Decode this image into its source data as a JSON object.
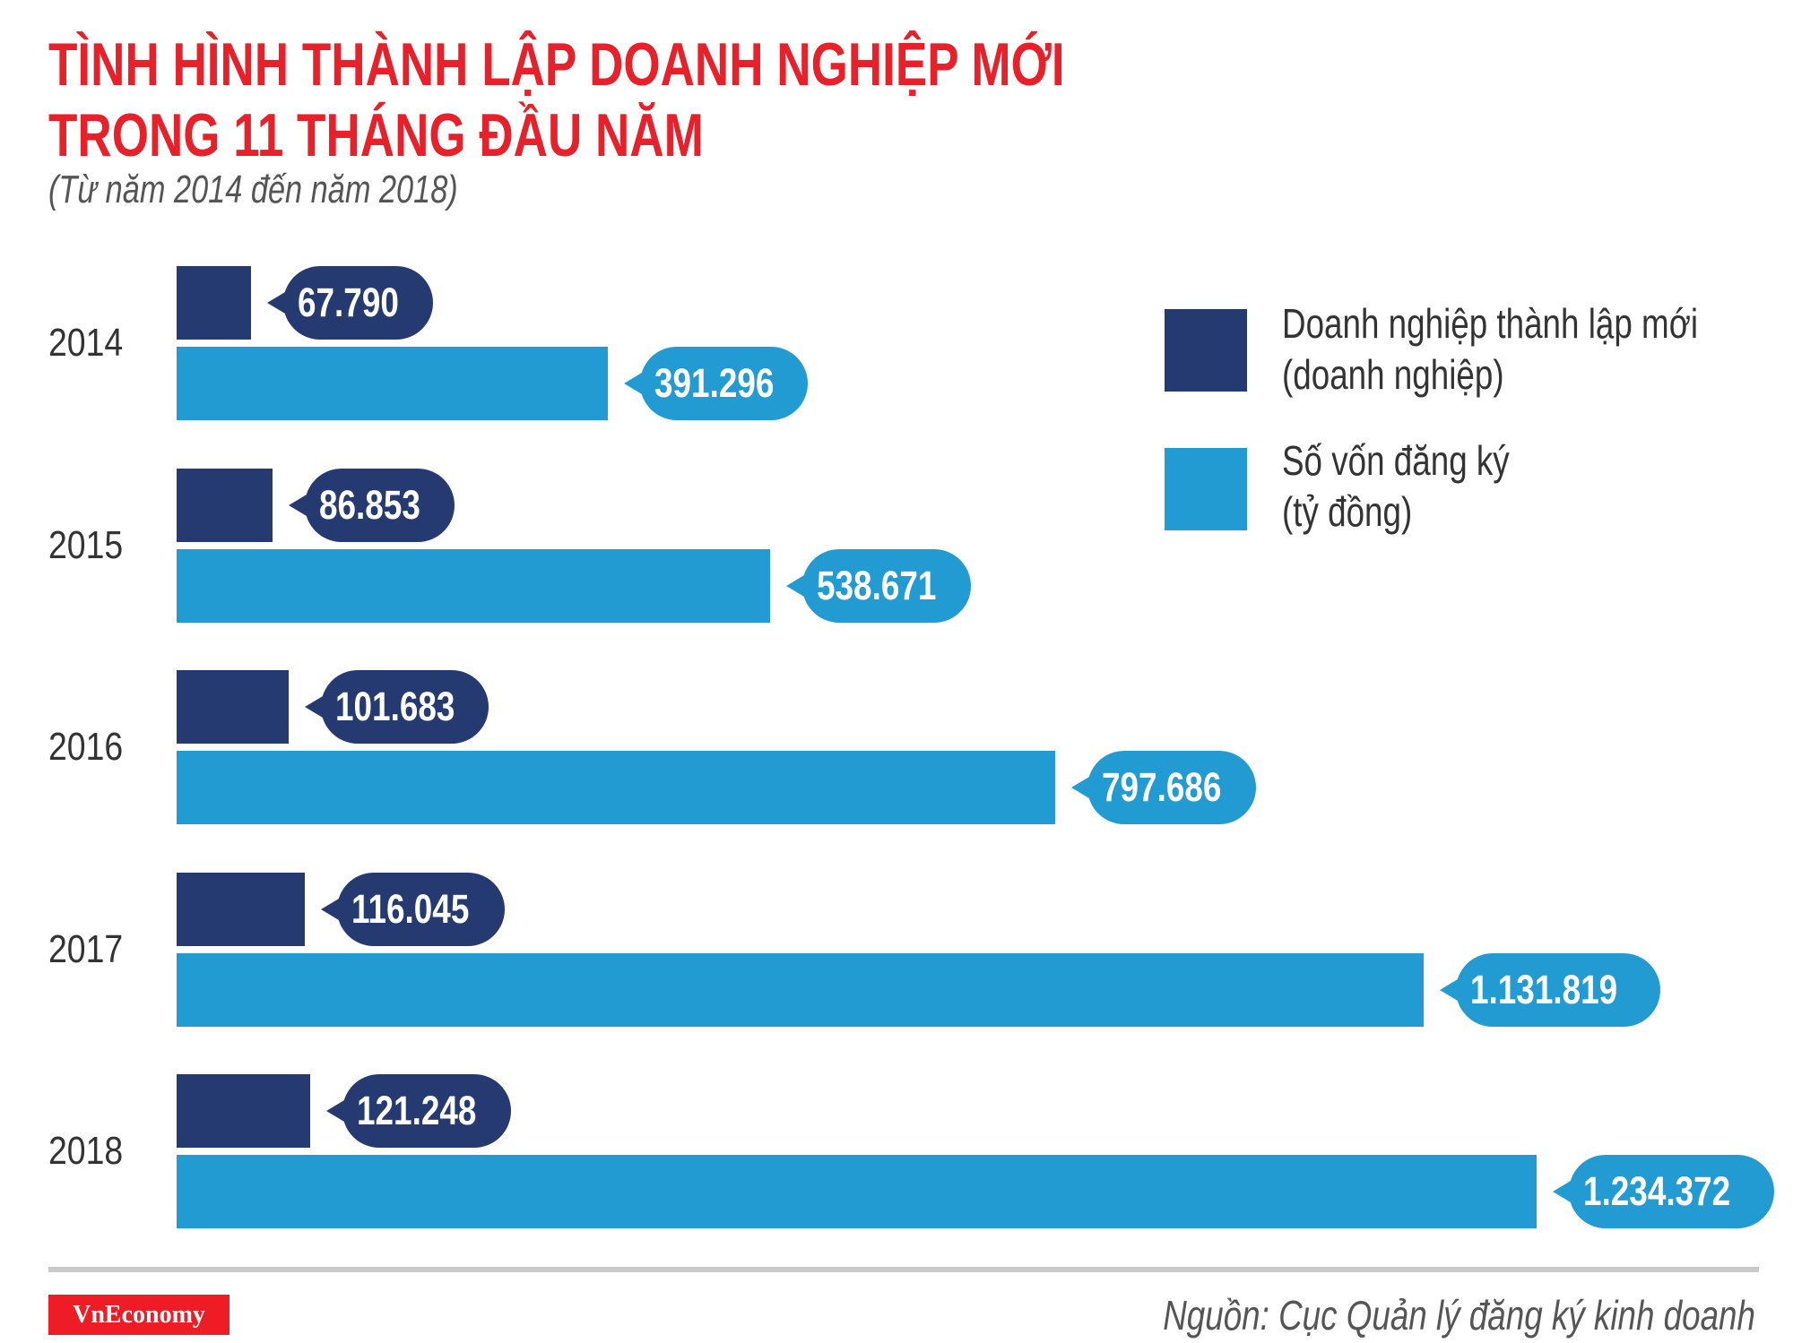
{
  "chart_data": {
    "type": "bar",
    "orientation": "horizontal",
    "title": "TÌNH HÌNH THÀNH LẬP DOANH NGHIỆP MỚI TRONG 11 THÁNG ĐẦU NĂM",
    "title_lines": [
      "TÌNH HÌNH THÀNH LẬP DOANH NGHIỆP MỚI",
      "TRONG 11 THÁNG ĐẦU NĂM"
    ],
    "subtitle": "(Từ năm 2014 đến năm 2018)",
    "categories": [
      "2014",
      "2015",
      "2016",
      "2017",
      "2018"
    ],
    "series": [
      {
        "name": "Doanh nghiệp thành lập mới (doanh nghiệp)",
        "legend_lines": [
          "Doanh nghiệp thành lập mới",
          "(doanh nghiệp)"
        ],
        "color": "#263a72",
        "values": [
          67790,
          86853,
          101683,
          116045,
          121248
        ],
        "labels": [
          "67.790",
          "86.853",
          "101.683",
          "116.045",
          "121.248"
        ]
      },
      {
        "name": "Số vốn đăng ký (tỷ đồng)",
        "legend_lines": [
          "Số vốn đăng ký",
          "(tỷ đồng)"
        ],
        "color": "#219bd2",
        "values": [
          391296,
          538671,
          797686,
          1131819,
          1234372
        ],
        "labels": [
          "391.296",
          "538.671",
          "797.686",
          "1.131.819",
          "1.234.372"
        ]
      }
    ],
    "legend_position": "top-right",
    "grid": false
  },
  "footer": {
    "logo": "VnEconomy",
    "source": "Nguồn: Cục Quản lý đăng ký kinh doanh"
  },
  "colors": {
    "title": "#e8202a",
    "logo": "#ee1c25"
  }
}
